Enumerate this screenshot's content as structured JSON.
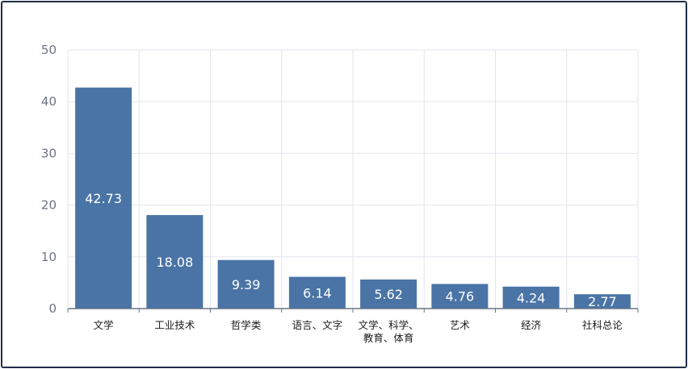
{
  "chart_data": {
    "type": "bar",
    "categories": [
      [
        "文学"
      ],
      [
        "工业技术"
      ],
      [
        "哲学类"
      ],
      [
        "语言、文字"
      ],
      [
        "文学、科学、",
        "教育、体育"
      ],
      [
        "艺术"
      ],
      [
        "经济"
      ],
      [
        "社科总论"
      ]
    ],
    "values": [
      42.73,
      18.08,
      9.39,
      6.14,
      5.62,
      4.76,
      4.24,
      2.77
    ],
    "value_labels": [
      "42.73",
      "18.08",
      "9.39",
      "6.14",
      "5.62",
      "4.76",
      "4.24",
      "2.77"
    ],
    "yticks": [
      "0",
      "10",
      "20",
      "30",
      "40",
      "50"
    ],
    "ylim": [
      0,
      50
    ],
    "grid": true,
    "colors": {
      "bar": "#4a74a6",
      "grid": "#e3e6f0",
      "axis": "#6b7484"
    }
  }
}
